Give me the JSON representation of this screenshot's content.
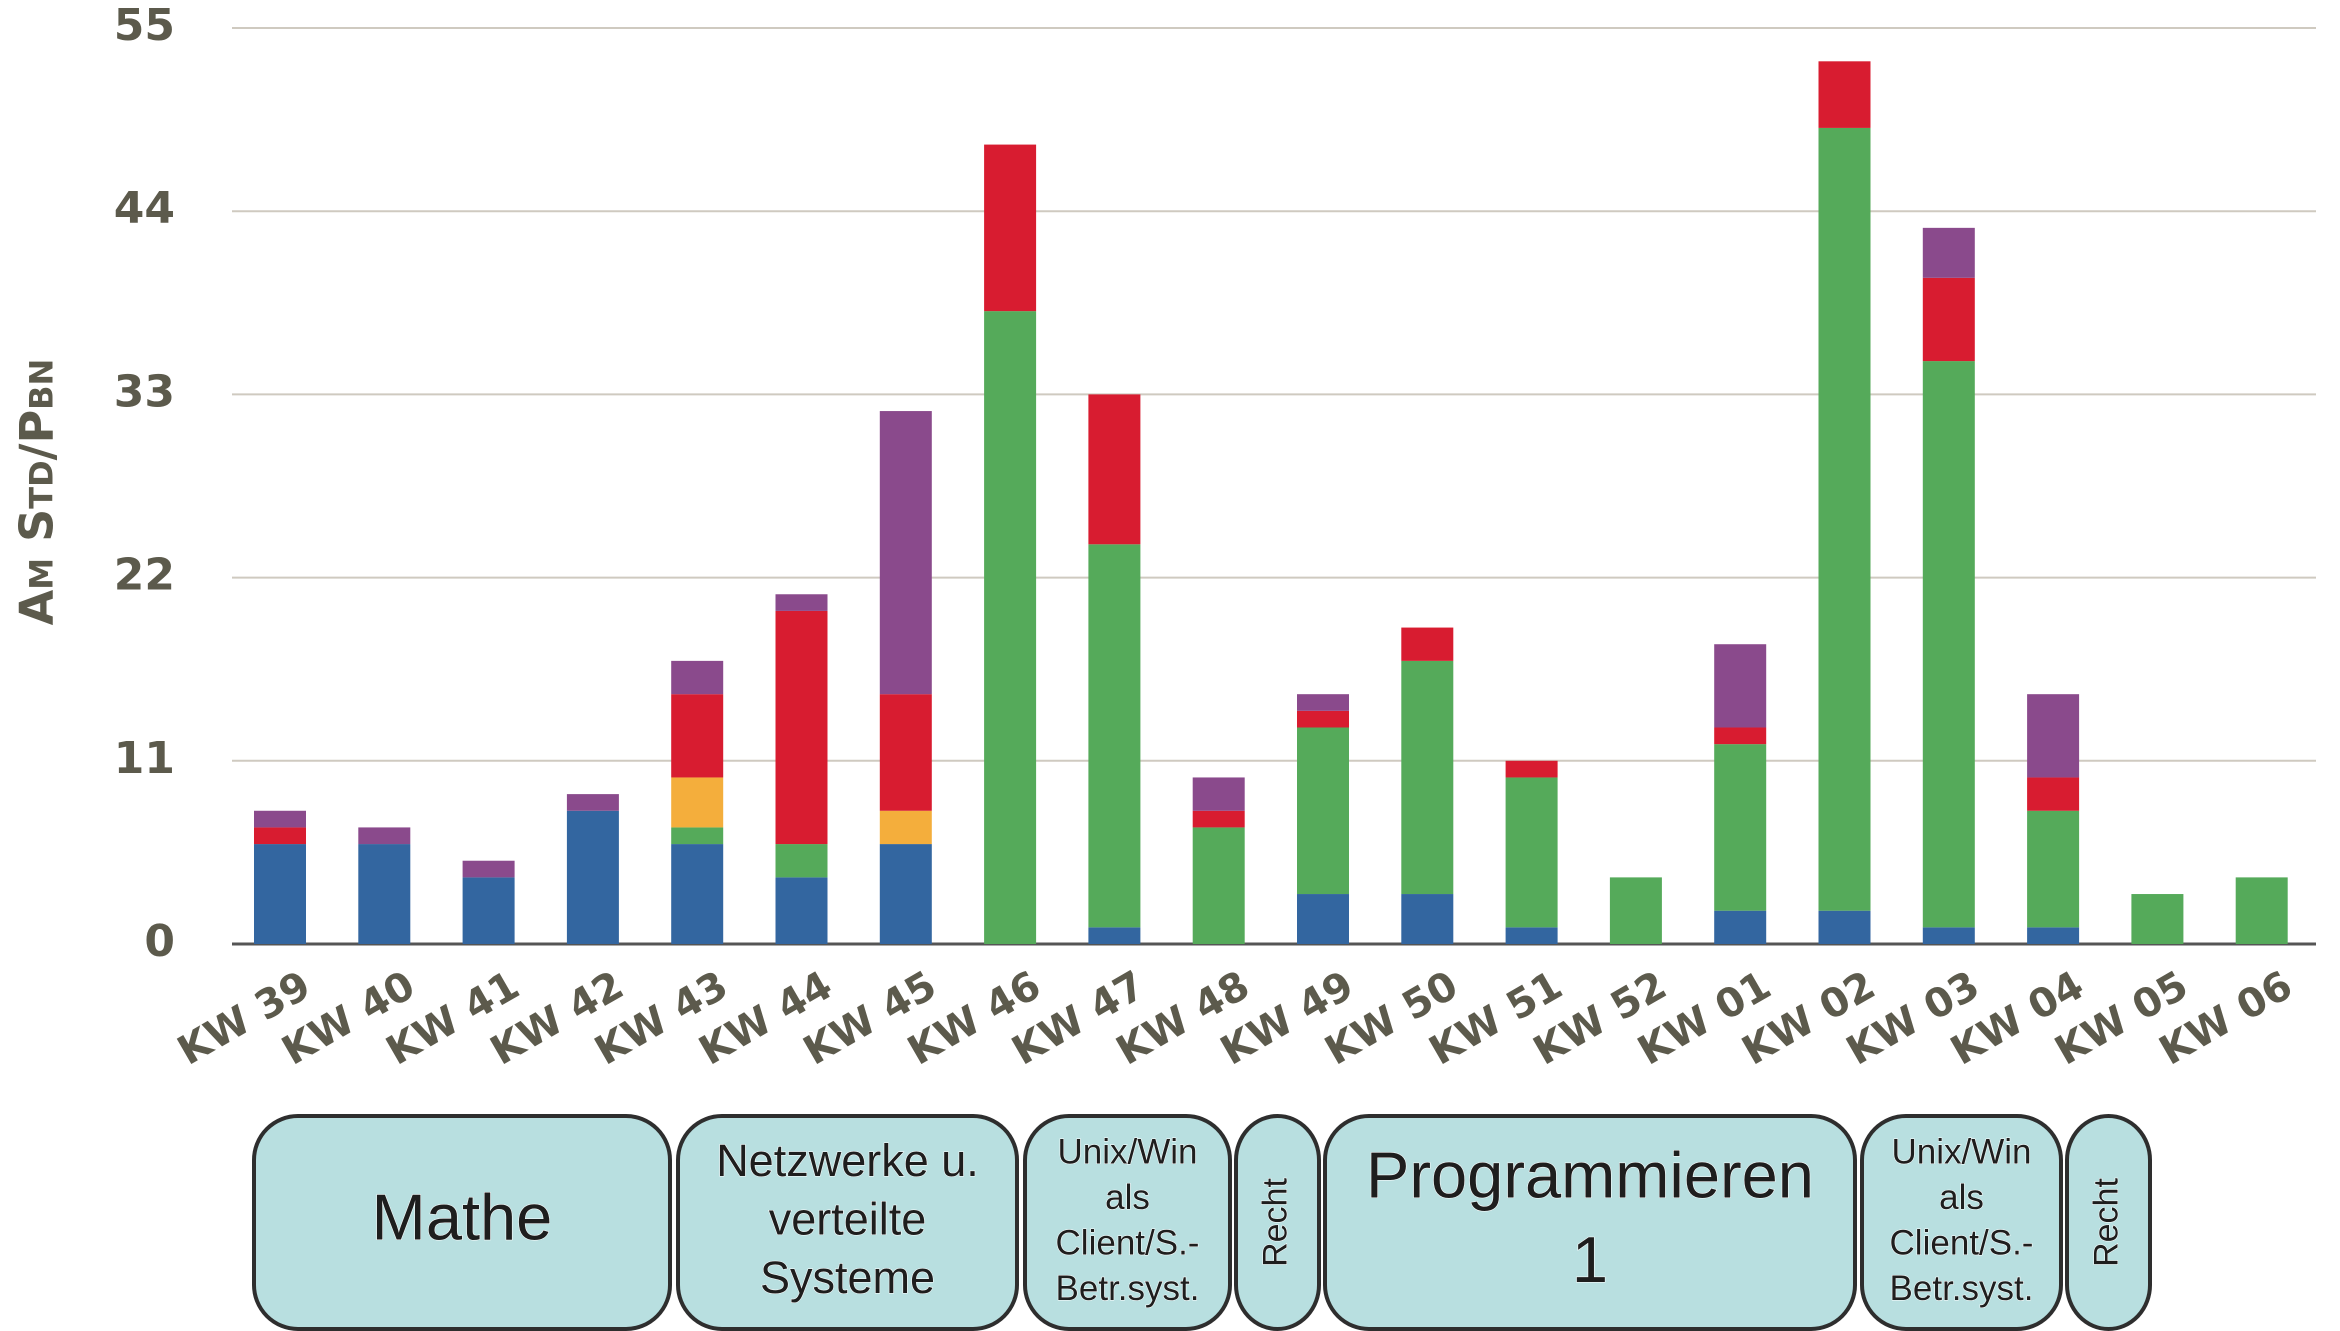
{
  "chart_data": {
    "type": "stacked_bar",
    "ylabel": "Am Std/Pbn",
    "categories": [
      "KW 39",
      "KW 40",
      "KW 41",
      "KW 42",
      "KW 43",
      "KW 44",
      "KW 45",
      "KW 46",
      "KW 47",
      "KW 48",
      "KW 49",
      "KW 50",
      "KW 51",
      "KW 52",
      "KW 01",
      "KW 02",
      "KW 03",
      "KW 04",
      "KW 05",
      "KW 06"
    ],
    "series": [
      {
        "color": "#3366a0",
        "values": [
          6,
          6,
          4,
          8,
          6,
          4,
          6,
          0,
          1,
          0,
          3,
          3,
          1,
          0,
          2,
          2,
          1,
          1,
          0,
          0
        ]
      },
      {
        "color": "#55aa5a",
        "values": [
          0,
          0,
          0,
          0,
          1,
          2,
          0,
          38,
          23,
          7,
          10,
          14,
          9,
          4,
          10,
          47,
          34,
          7,
          3,
          4
        ]
      },
      {
        "color": "#f4ae3c",
        "values": [
          0,
          0,
          0,
          0,
          3,
          0,
          2,
          0,
          0,
          0,
          0,
          0,
          0,
          0,
          0,
          0,
          0,
          0,
          0,
          0
        ]
      },
      {
        "color": "#d81c30",
        "values": [
          1,
          0,
          0,
          0,
          5,
          14,
          7,
          10,
          9,
          1,
          1,
          2,
          1,
          0,
          1,
          4,
          5,
          2,
          0,
          0
        ]
      },
      {
        "color": "#8a4a8c",
        "values": [
          1,
          1,
          1,
          1,
          2,
          1,
          17,
          0,
          0,
          2,
          1,
          0,
          0,
          0,
          5,
          0,
          3,
          5,
          0,
          0
        ]
      }
    ],
    "ylim": [
      0,
      55
    ],
    "yticks": [
      0,
      11,
      22,
      33,
      44,
      55
    ],
    "grid": true,
    "annotations": [
      {
        "lines": [
          "Mathe"
        ]
      },
      {
        "lines": [
          "Netzwerke u.",
          "verteilte",
          "Systeme"
        ]
      },
      {
        "lines": [
          "Unix/Win",
          "als",
          "Client/S.-",
          "Betr.syst."
        ]
      },
      {
        "lines": [
          "Recht"
        ]
      },
      {
        "lines": [
          "Programmieren",
          "1"
        ]
      },
      {
        "lines": [
          "Unix/Win",
          "als",
          "Client/S.-",
          "Betr.syst."
        ]
      },
      {
        "lines": [
          "Recht"
        ]
      }
    ]
  }
}
